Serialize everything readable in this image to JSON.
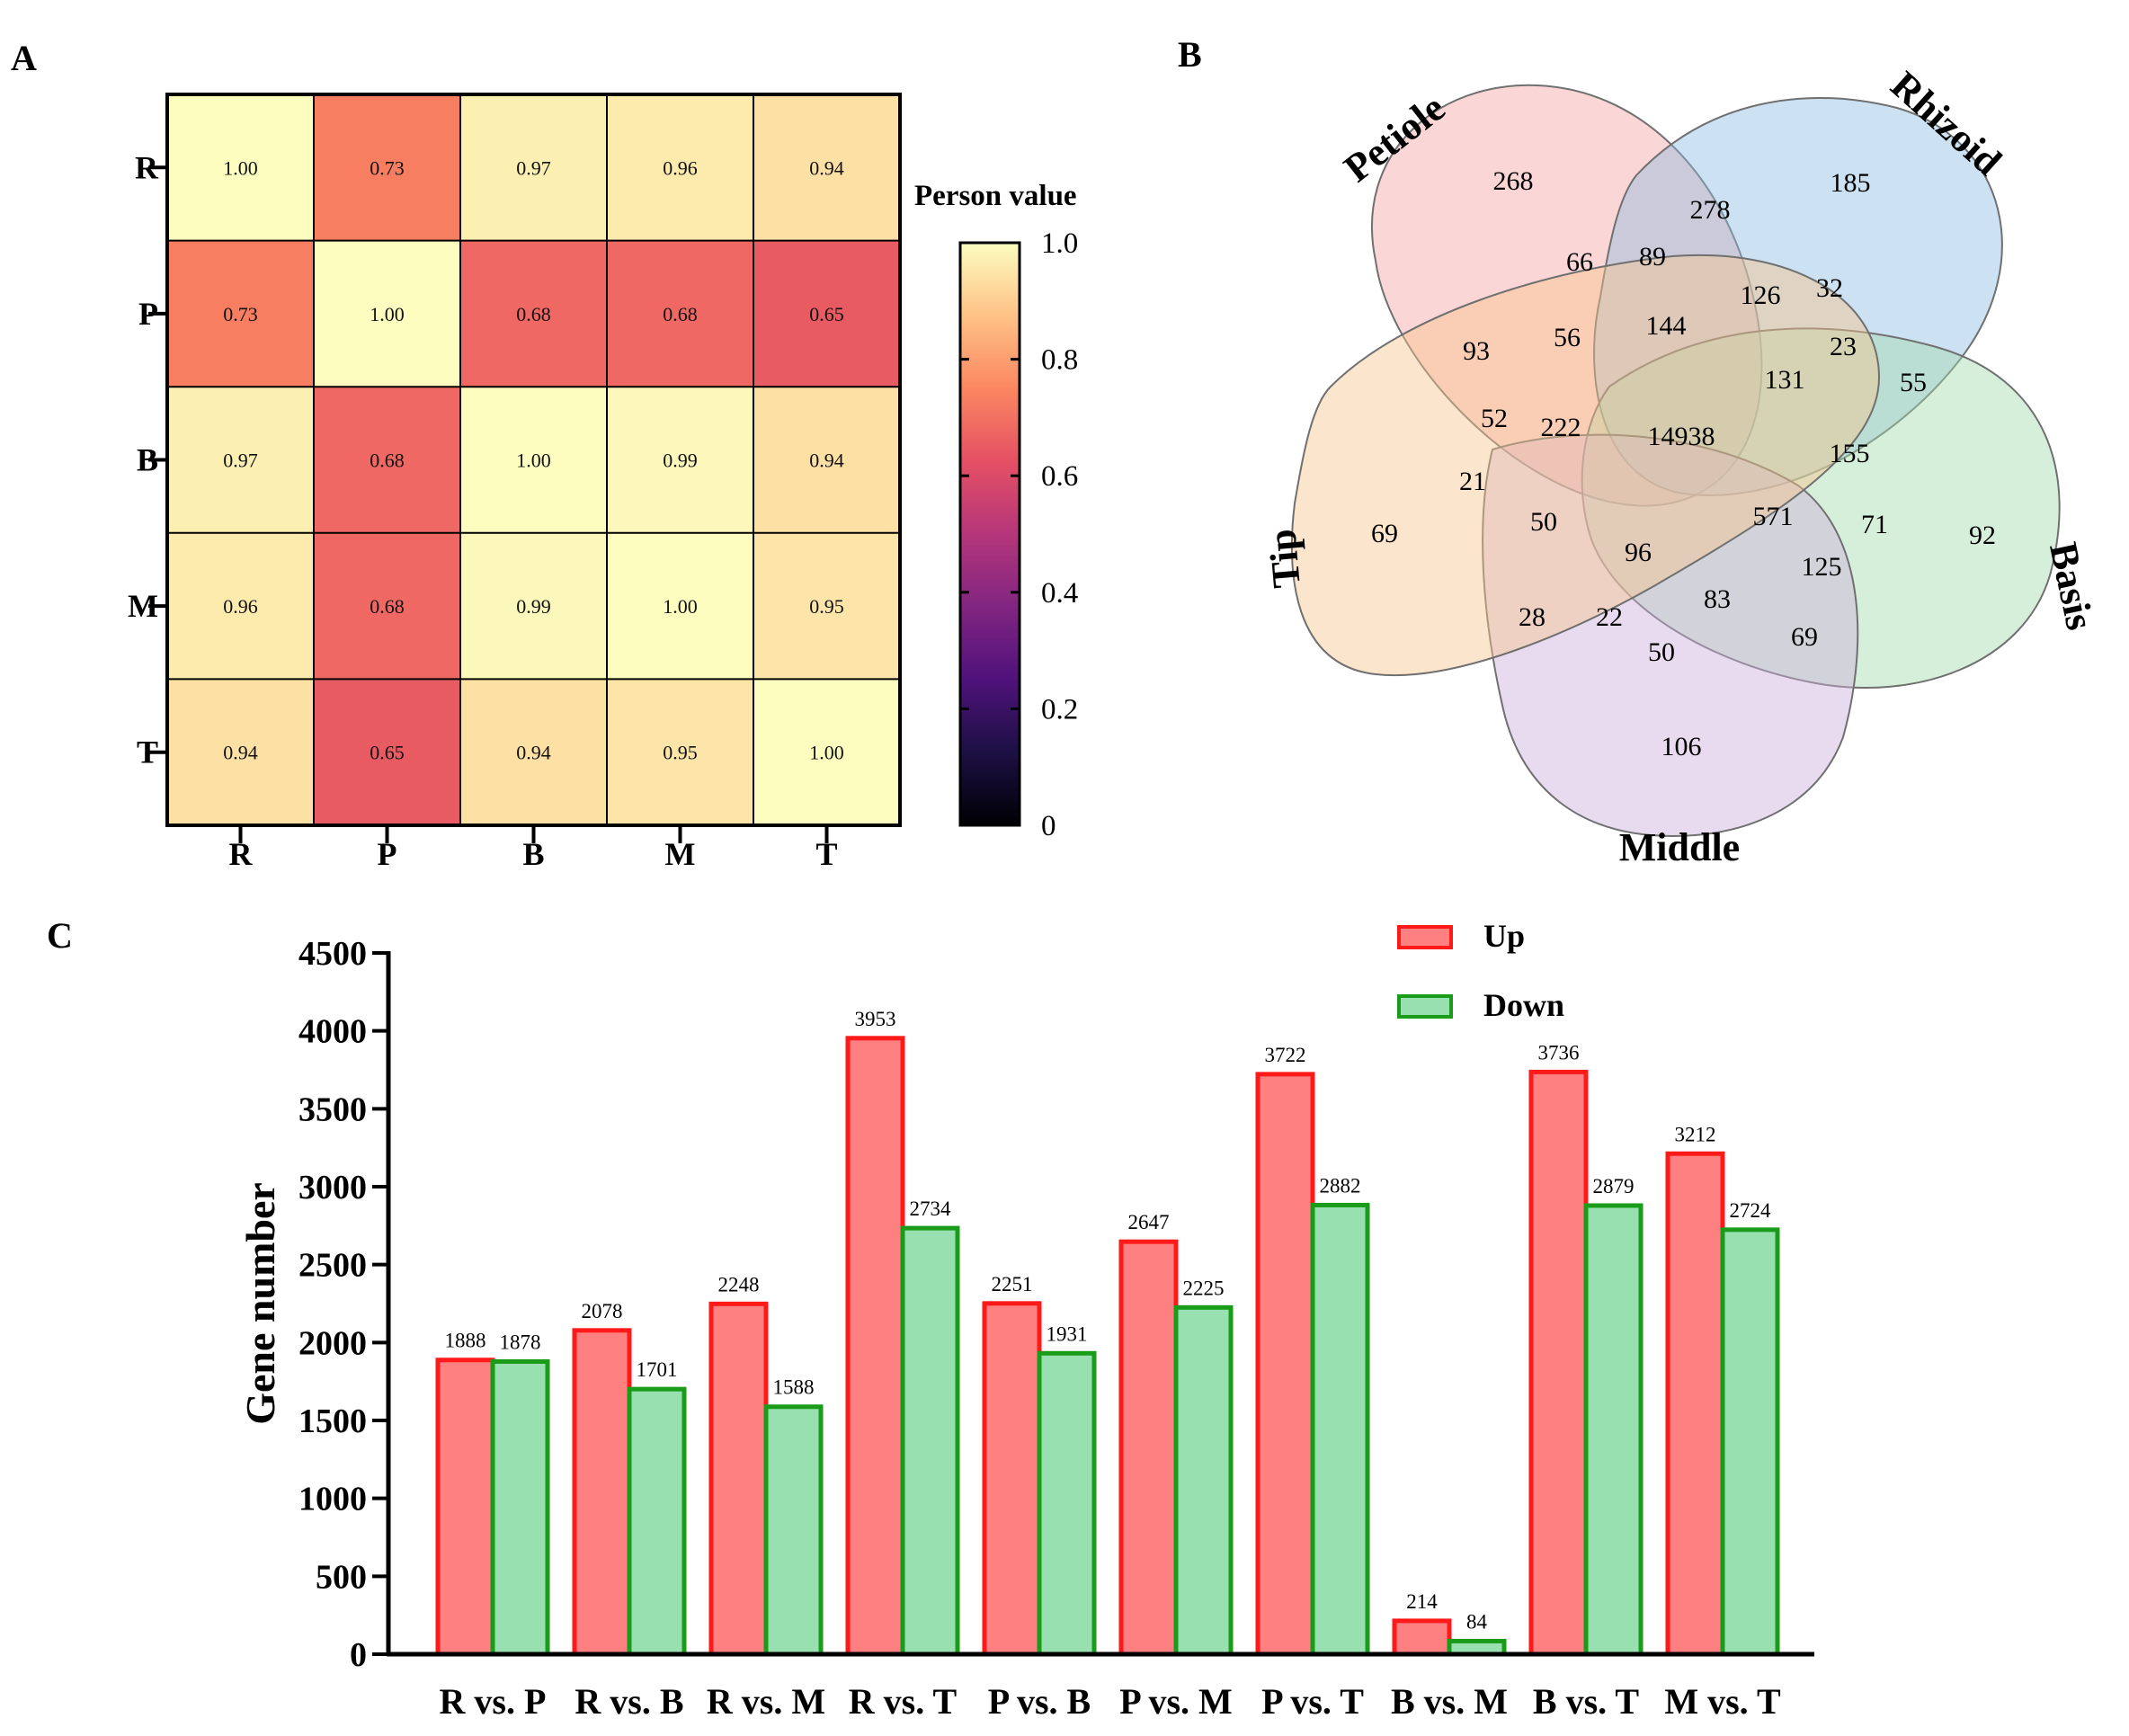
{
  "panels": {
    "A": "A",
    "B": "B",
    "C": "C"
  },
  "colors": {
    "up_fill": "#ff8080",
    "up_stroke": "#ff1a1a",
    "down_fill": "#98e0b0",
    "down_stroke": "#1a9c1a",
    "venn_petiole": "#f7a3a3",
    "venn_rhizoid": "#8fbde0",
    "venn_basis": "#a3dcb0",
    "venn_middle": "#cfb0dc",
    "venn_tip": "#f7c58e"
  },
  "chart_data": [
    {
      "id": "A",
      "type": "heatmap",
      "row_labels": [
        "R",
        "P",
        "B",
        "M",
        "T"
      ],
      "col_labels": [
        "R",
        "P",
        "B",
        "M",
        "T"
      ],
      "values": [
        [
          1.0,
          0.73,
          0.97,
          0.96,
          0.94
        ],
        [
          0.73,
          1.0,
          0.68,
          0.68,
          0.65
        ],
        [
          0.97,
          0.68,
          1.0,
          0.99,
          0.94
        ],
        [
          0.96,
          0.68,
          0.99,
          1.0,
          0.95
        ],
        [
          0.94,
          0.65,
          0.94,
          0.95,
          1.0
        ]
      ],
      "value_labels": [
        [
          "1.00",
          "0.73",
          "0.97",
          "0.96",
          "0.94"
        ],
        [
          "0.73",
          "1.00",
          "0.68",
          "0.68",
          "0.65"
        ],
        [
          "0.97",
          "0.68",
          "1.00",
          "0.99",
          "0.94"
        ],
        [
          "0.96",
          "0.68",
          "0.99",
          "1.00",
          "0.95"
        ],
        [
          "0.94",
          "0.65",
          "0.94",
          "0.95",
          "1.00"
        ]
      ],
      "colorbar": {
        "title": "Person value",
        "range": [
          0,
          1
        ],
        "ticks": [
          1.0,
          0.8,
          0.6,
          0.4,
          0.2,
          0
        ],
        "tick_labels": [
          "1.0",
          "0.8",
          "0.6",
          "0.4",
          "0.2",
          "0"
        ]
      }
    },
    {
      "id": "B",
      "type": "venn",
      "sets": [
        "Petiole",
        "Rhizoid",
        "Basis",
        "Middle",
        "Tip"
      ],
      "region_counts": {
        "petiole_only": "268",
        "rhizoid_only": "185",
        "basis_only": "92",
        "middle_only": "106",
        "tip_only": "69",
        "r1": "278",
        "r2": "66",
        "r3": "89",
        "r4": "126",
        "r5": "32",
        "r6": "93",
        "r7": "56",
        "r8": "144",
        "r9": "23",
        "r10": "55",
        "r11": "131",
        "r12": "52",
        "r13": "222",
        "core": "14938",
        "r14": "155",
        "r15": "21",
        "r16": "50",
        "r17": "96",
        "r18": "571",
        "r19": "71",
        "r20": "125",
        "r21": "83",
        "r22": "28",
        "r23": "22",
        "r24": "50",
        "r25": "69"
      }
    },
    {
      "id": "C",
      "type": "bar",
      "categories": [
        "R vs. P",
        "R vs. B",
        "R vs. M",
        "R vs. T",
        "P vs. B",
        "P vs. M",
        "P vs. T",
        "B vs. M",
        "B vs. T",
        "M vs. T"
      ],
      "series": [
        {
          "name": "Up",
          "values": [
            1888,
            2078,
            2248,
            3953,
            2251,
            2647,
            3722,
            214,
            3736,
            3212
          ]
        },
        {
          "name": "Down",
          "values": [
            1878,
            1701,
            1588,
            2734,
            1931,
            2225,
            2882,
            84,
            2879,
            2724
          ]
        }
      ],
      "ylabel": "Gene number",
      "ylim": [
        0,
        4500
      ],
      "yticks": [
        0,
        500,
        1000,
        1500,
        2000,
        2500,
        3000,
        3500,
        4000,
        4500
      ],
      "legend": "top-right"
    }
  ]
}
